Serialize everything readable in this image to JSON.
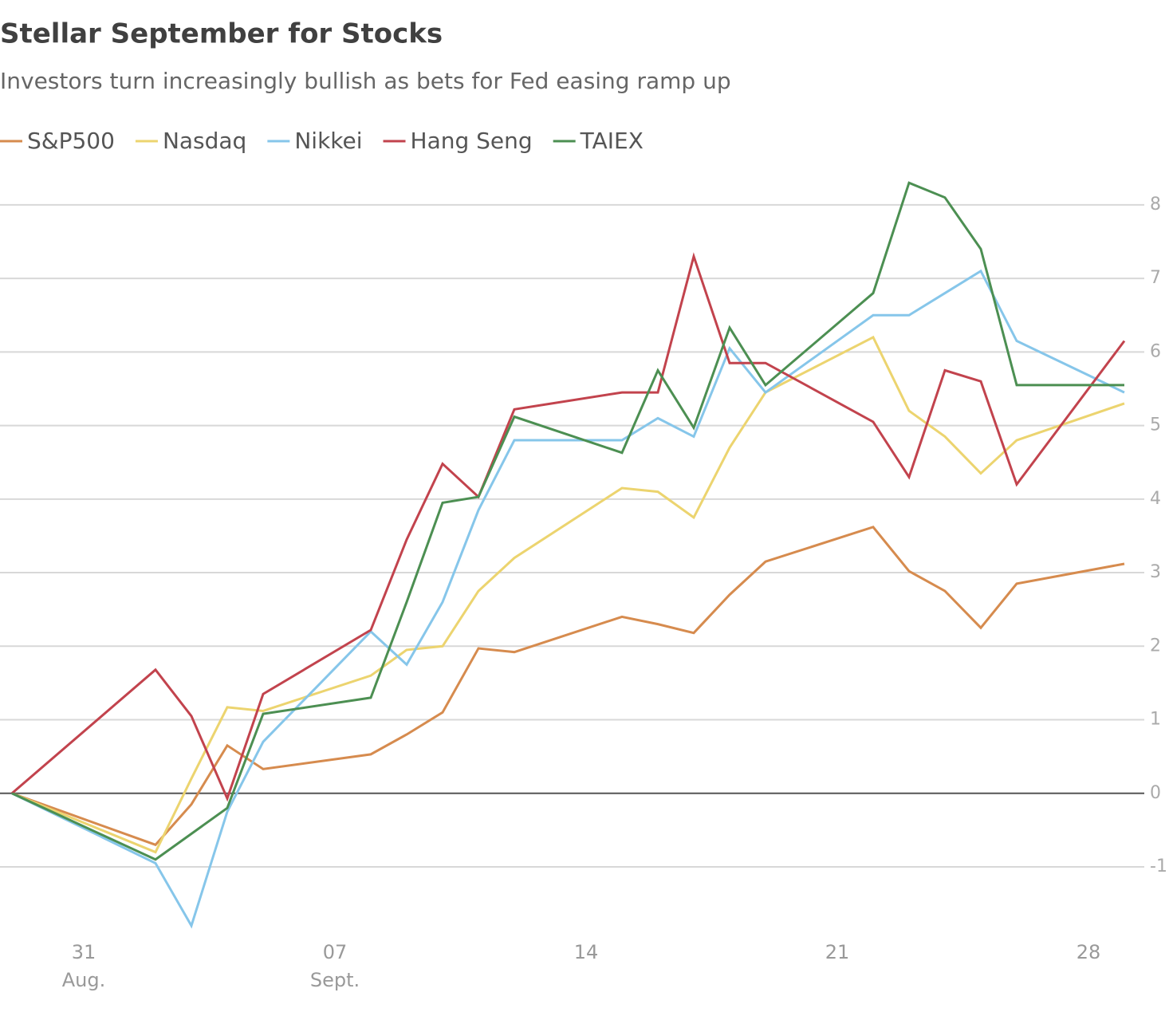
{
  "chart_data": {
    "type": "line",
    "title": "Stellar September for Stocks",
    "subtitle": "Investors turn increasingly bullish as bets for Fed easing ramp up",
    "x": [
      29,
      33,
      34,
      35,
      36,
      39,
      40,
      41,
      42,
      43,
      46,
      47,
      48,
      49,
      50,
      53,
      54,
      55,
      56,
      57,
      60
    ],
    "series": [
      {
        "name": "S&P500",
        "color": "#d68b4e",
        "values": [
          0,
          -0.7,
          -0.15,
          0.65,
          0.33,
          0.53,
          0.8,
          1.1,
          1.97,
          1.92,
          2.4,
          2.3,
          2.18,
          2.7,
          3.15,
          3.62,
          3.02,
          2.75,
          2.25,
          2.85,
          3.12
        ]
      },
      {
        "name": "Nasdaq",
        "color": "#ecd46f",
        "values": [
          0,
          -0.8,
          0.2,
          1.17,
          1.12,
          1.6,
          1.95,
          2.0,
          2.75,
          3.2,
          4.15,
          4.1,
          3.75,
          4.7,
          5.45,
          6.2,
          5.2,
          4.85,
          4.35,
          4.8,
          5.3
        ]
      },
      {
        "name": "Nikkei",
        "color": "#86c6ea",
        "values": [
          0,
          -0.95,
          -1.8,
          -0.25,
          0.7,
          2.2,
          1.75,
          2.6,
          3.85,
          4.8,
          4.8,
          5.1,
          4.85,
          6.05,
          5.45,
          6.5,
          6.5,
          6.8,
          7.1,
          6.15,
          5.45
        ]
      },
      {
        "name": "Hang Seng",
        "color": "#c2434d",
        "values": [
          0,
          1.68,
          1.05,
          -0.07,
          1.35,
          2.22,
          3.45,
          4.48,
          4.03,
          5.22,
          5.45,
          5.45,
          7.3,
          5.85,
          5.85,
          5.05,
          4.3,
          5.75,
          5.6,
          4.2,
          6.15
        ]
      },
      {
        "name": "TAIEX",
        "color": "#4c8f52",
        "values": [
          0,
          -0.9,
          -0.55,
          -0.2,
          1.08,
          1.3,
          2.6,
          3.95,
          4.03,
          5.12,
          4.63,
          5.75,
          4.97,
          6.33,
          5.55,
          6.8,
          8.3,
          8.1,
          7.4,
          5.55,
          5.55
        ]
      }
    ],
    "xlim": [
      29,
      60.7
    ],
    "xticks": [
      {
        "value": 31,
        "label": "31"
      },
      {
        "value": 38,
        "label": "07"
      },
      {
        "value": 45,
        "label": "14"
      },
      {
        "value": 52,
        "label": "21"
      },
      {
        "value": 59,
        "label": "28"
      }
    ],
    "x_month_labels": [
      {
        "value": 31,
        "label": "Aug."
      },
      {
        "value": 38,
        "label": "Sept."
      }
    ],
    "ylim": [
      -1.9,
      8.4
    ],
    "yticks": [
      -1,
      0,
      1,
      2,
      3,
      4,
      5,
      6,
      7,
      8
    ],
    "grid": true
  }
}
